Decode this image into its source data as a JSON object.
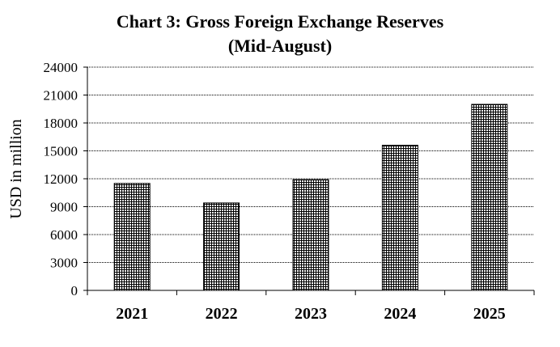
{
  "chart_data": {
    "type": "bar",
    "title": "Chart  3: Gross Foreign Exchange Reserves",
    "subtitle": "(Mid-August)",
    "xlabel": "",
    "ylabel": "USD in million",
    "categories": [
      "2021",
      "2022",
      "2023",
      "2024",
      "2025"
    ],
    "values": [
      11500,
      9400,
      11900,
      15600,
      20000
    ],
    "ylim": [
      0,
      24000
    ],
    "yticks": [
      0,
      3000,
      6000,
      9000,
      12000,
      15000,
      18000,
      21000,
      24000
    ],
    "grid": "horizontal dotted",
    "legend": "none",
    "bar_fill": "grid pattern",
    "colors": {
      "bar": "#000000",
      "background": "#ffffff"
    }
  }
}
